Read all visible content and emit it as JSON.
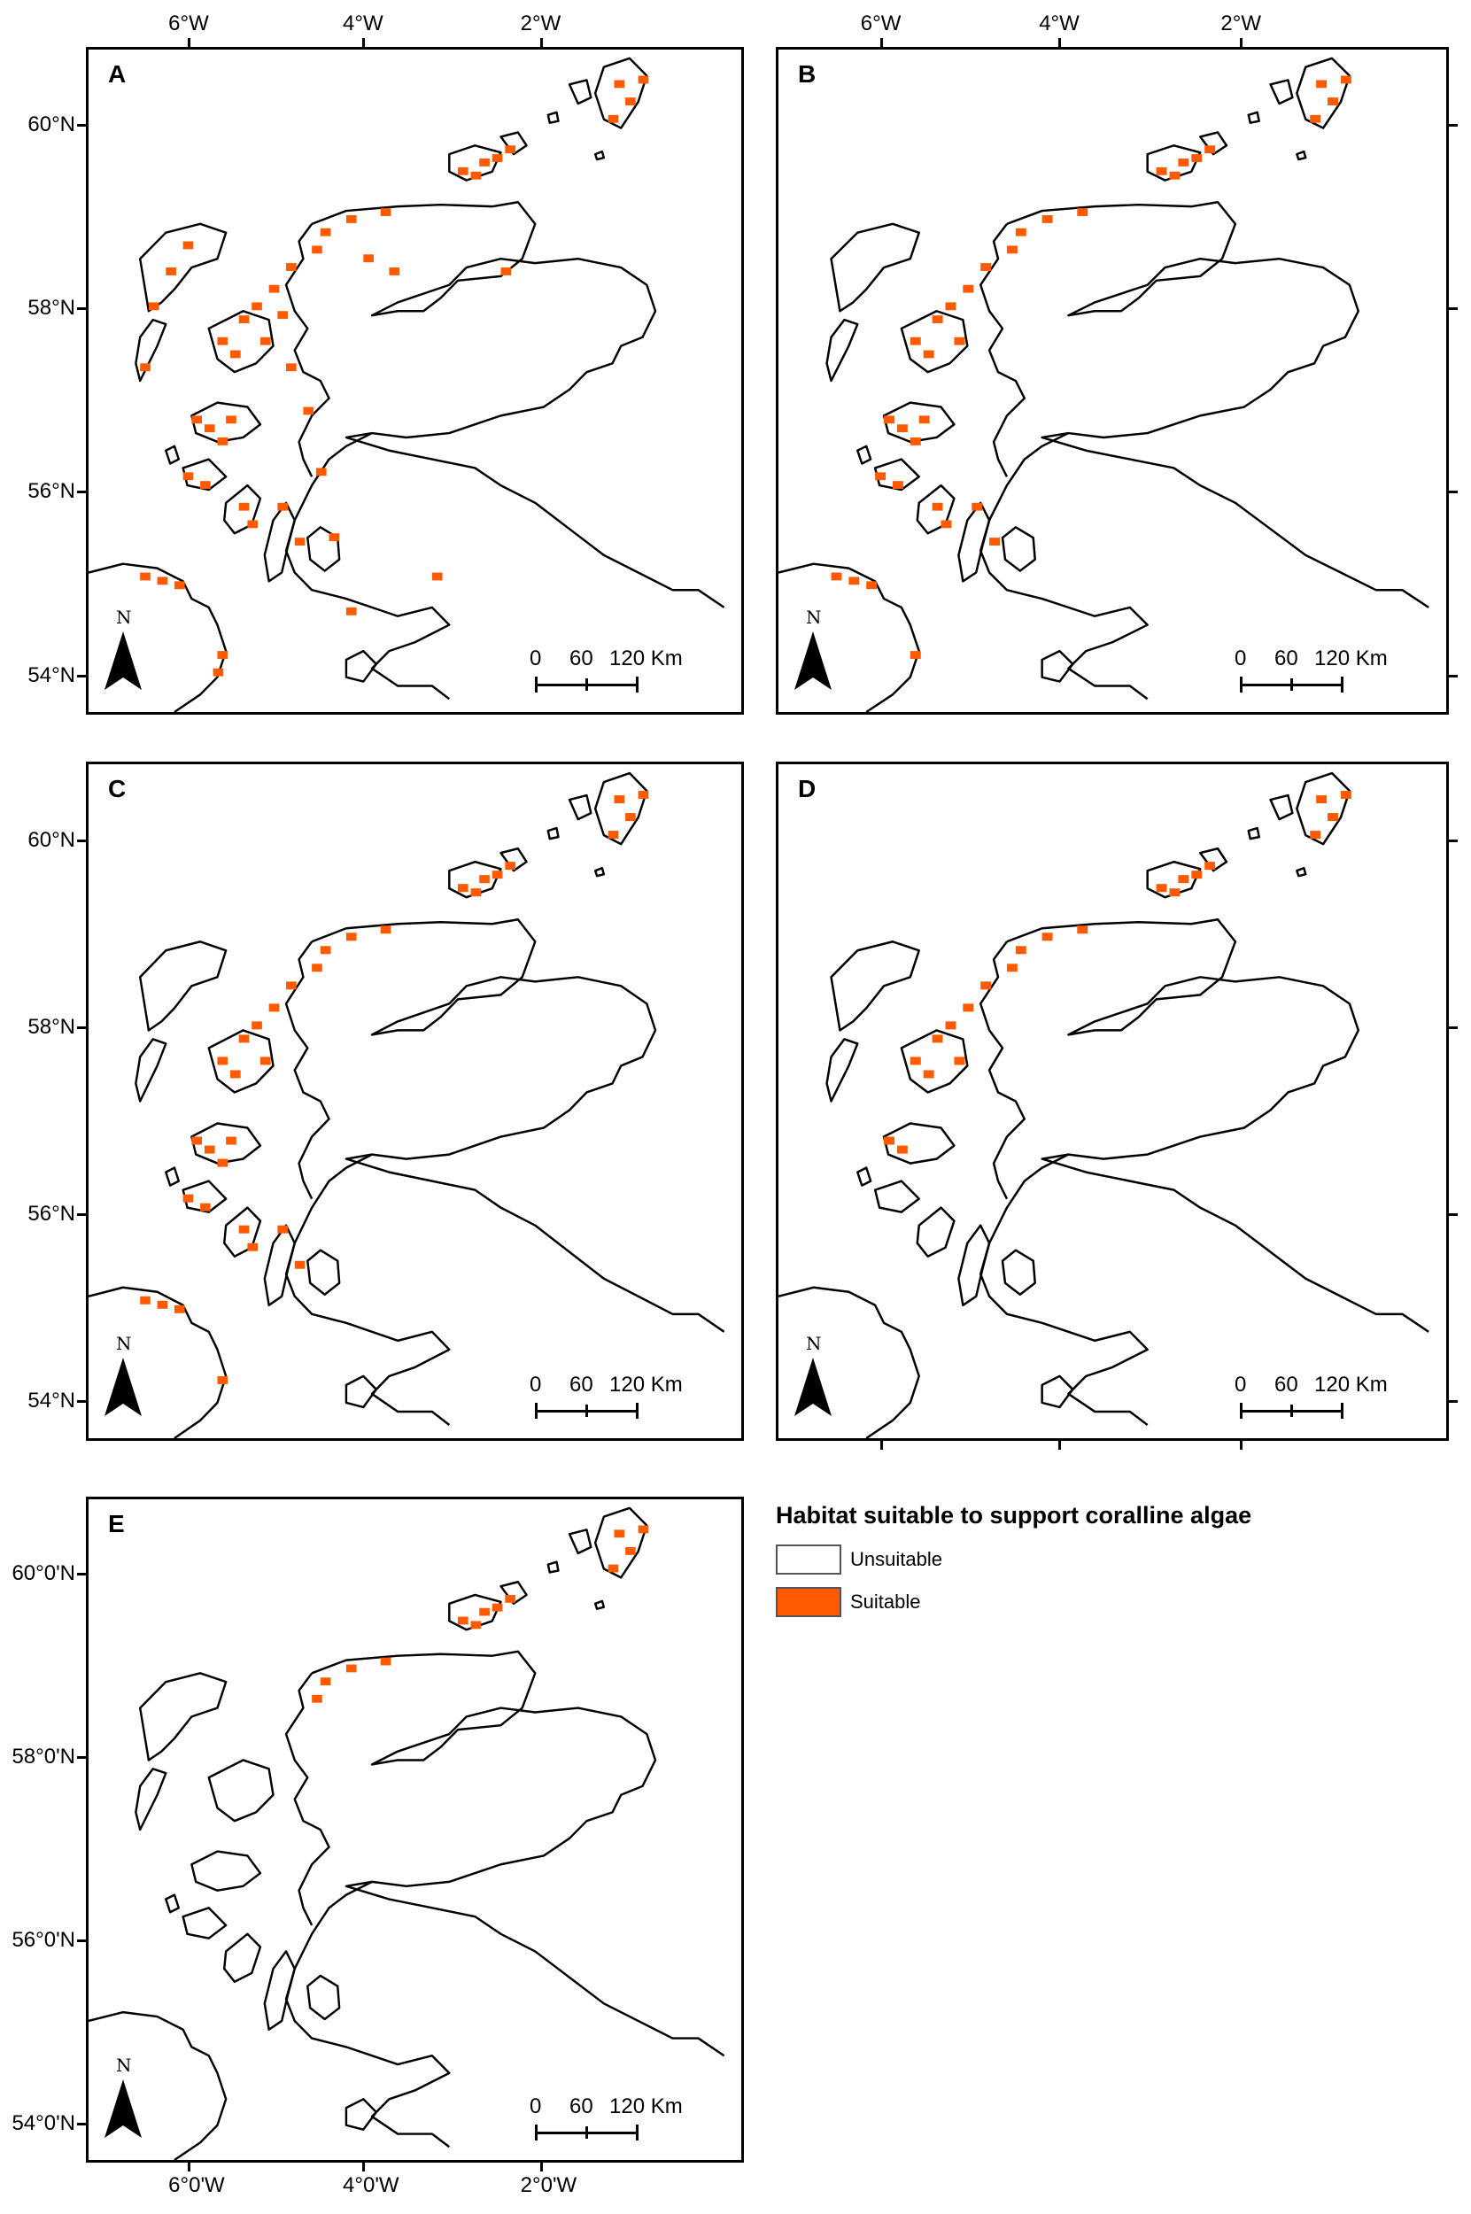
{
  "legend": {
    "title": "Habitat suitable to support coralline algae",
    "items": [
      {
        "label": "Unsuitable",
        "color": "#ffffff"
      },
      {
        "label": "Suitable",
        "color": "#ff5a00"
      }
    ]
  },
  "scale_bar": {
    "labels": [
      "0",
      "60",
      "120 Km"
    ]
  },
  "north_label": "N",
  "colors": {
    "land_outline": "#000000",
    "suitable": "#ff5a00",
    "background": "#ffffff"
  },
  "panels": [
    {
      "label": "A",
      "lat_labels": [
        "60°N",
        "58°N",
        "56°N",
        "54°N"
      ],
      "lon_labels": [
        "6°W",
        "4°W",
        "2°W"
      ],
      "lon_position": "top",
      "suitable_extent": "high"
    },
    {
      "label": "B",
      "lat_labels": [],
      "lon_labels": [
        "6°W",
        "4°W",
        "2°W"
      ],
      "lon_position": "top",
      "suitable_extent": "moderate"
    },
    {
      "label": "C",
      "lat_labels": [
        "60°N",
        "58°N",
        "56°N",
        "54°N"
      ],
      "lon_labels": [],
      "lon_position": "none",
      "suitable_extent": "moderate"
    },
    {
      "label": "D",
      "lat_labels": [],
      "lon_labels": [],
      "lon_position": "bottom-ticks",
      "suitable_extent": "low"
    },
    {
      "label": "E",
      "lat_labels": [
        "60°0'N",
        "58°0'N",
        "56°0'N",
        "54°0'N"
      ],
      "lon_labels": [
        "6°0'W",
        "4°0'W",
        "2°0'W"
      ],
      "lon_position": "bottom",
      "suitable_extent": "very low"
    }
  ]
}
